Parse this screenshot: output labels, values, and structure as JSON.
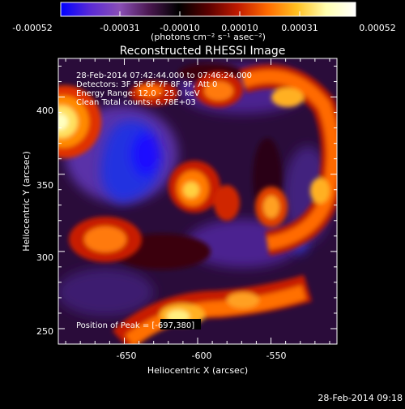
{
  "colorbar": {
    "tick_labels": [
      "-0.00052",
      "-0.00031",
      "-0.00010",
      "0.00010",
      "0.00031",
      "0.00052"
    ],
    "units_label": "(photons cm⁻² s⁻¹ asec⁻²)",
    "gradient_stops": [
      "#0000ff",
      "#5a2ad6",
      "#8a4fb6",
      "#4a1850",
      "#000000",
      "#5a0000",
      "#c01a00",
      "#ff6a00",
      "#ffc020",
      "#ffffb0",
      "#ffffff"
    ]
  },
  "plot": {
    "title": "Reconstructed RHESSI Image",
    "xlabel": "Heliocentric X (arcsec)",
    "ylabel": "Heliocentric Y (arcsec)",
    "x_ticks": [
      "-650",
      "-600",
      "-550"
    ],
    "y_ticks": [
      "400",
      "350",
      "300",
      "250"
    ],
    "xlim": [
      -695,
      -505
    ],
    "ylim": [
      240,
      425
    ],
    "info_lines": [
      "28-Feb-2014 07:42:44.000 to 07:46:24.000",
      "Detectors: 3F 5F 6F 7F 8F 9F, Att 0",
      "Energy Range: 12.0 - 25.0 keV",
      "Clean     Total counts: 6.78E+03"
    ],
    "peak_label": "Position of Peak = [-697,380]"
  },
  "footer": {
    "timestamp": "28-Feb-2014 09:18"
  }
}
